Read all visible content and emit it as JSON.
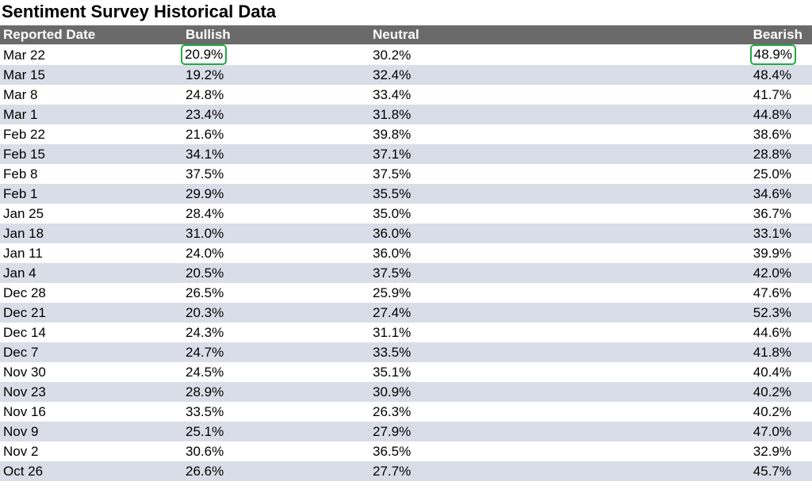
{
  "chart_data": {
    "type": "table",
    "title": "Sentiment Survey Historical Data",
    "columns": [
      "Reported Date",
      "Bullish",
      "Neutral",
      "Bearish"
    ],
    "highlighted_cells": [
      {
        "row": 0,
        "column": "Bullish"
      },
      {
        "row": 0,
        "column": "Bearish"
      }
    ],
    "highlight_color": "#22aa44",
    "rows": [
      {
        "date": "Mar 22",
        "bullish": "20.9%",
        "neutral": "30.2%",
        "bearish": "48.9%"
      },
      {
        "date": "Mar 15",
        "bullish": "19.2%",
        "neutral": "32.4%",
        "bearish": "48.4%"
      },
      {
        "date": "Mar 8",
        "bullish": "24.8%",
        "neutral": "33.4%",
        "bearish": "41.7%"
      },
      {
        "date": "Mar 1",
        "bullish": "23.4%",
        "neutral": "31.8%",
        "bearish": "44.8%"
      },
      {
        "date": "Feb 22",
        "bullish": "21.6%",
        "neutral": "39.8%",
        "bearish": "38.6%"
      },
      {
        "date": "Feb 15",
        "bullish": "34.1%",
        "neutral": "37.1%",
        "bearish": "28.8%"
      },
      {
        "date": "Feb 8",
        "bullish": "37.5%",
        "neutral": "37.5%",
        "bearish": "25.0%"
      },
      {
        "date": "Feb 1",
        "bullish": "29.9%",
        "neutral": "35.5%",
        "bearish": "34.6%"
      },
      {
        "date": "Jan 25",
        "bullish": "28.4%",
        "neutral": "35.0%",
        "bearish": "36.7%"
      },
      {
        "date": "Jan 18",
        "bullish": "31.0%",
        "neutral": "36.0%",
        "bearish": "33.1%"
      },
      {
        "date": "Jan 11",
        "bullish": "24.0%",
        "neutral": "36.0%",
        "bearish": "39.9%"
      },
      {
        "date": "Jan 4",
        "bullish": "20.5%",
        "neutral": "37.5%",
        "bearish": "42.0%"
      },
      {
        "date": "Dec 28",
        "bullish": "26.5%",
        "neutral": "25.9%",
        "bearish": "47.6%"
      },
      {
        "date": "Dec 21",
        "bullish": "20.3%",
        "neutral": "27.4%",
        "bearish": "52.3%"
      },
      {
        "date": "Dec 14",
        "bullish": "24.3%",
        "neutral": "31.1%",
        "bearish": "44.6%"
      },
      {
        "date": "Dec 7",
        "bullish": "24.7%",
        "neutral": "33.5%",
        "bearish": "41.8%"
      },
      {
        "date": "Nov 30",
        "bullish": "24.5%",
        "neutral": "35.1%",
        "bearish": "40.4%"
      },
      {
        "date": "Nov 23",
        "bullish": "28.9%",
        "neutral": "30.9%",
        "bearish": "40.2%"
      },
      {
        "date": "Nov 16",
        "bullish": "33.5%",
        "neutral": "26.3%",
        "bearish": "40.2%"
      },
      {
        "date": "Nov 9",
        "bullish": "25.1%",
        "neutral": "27.9%",
        "bearish": "47.0%"
      },
      {
        "date": "Nov 2",
        "bullish": "30.6%",
        "neutral": "36.5%",
        "bearish": "32.9%"
      },
      {
        "date": "Oct 26",
        "bullish": "26.6%",
        "neutral": "27.7%",
        "bearish": "45.7%"
      }
    ]
  },
  "colors": {
    "header_bg": "#6a6a6a",
    "header_text": "#ffffff",
    "row_alt_bg": "#d9dde8",
    "row_bg": "#ffffff"
  }
}
